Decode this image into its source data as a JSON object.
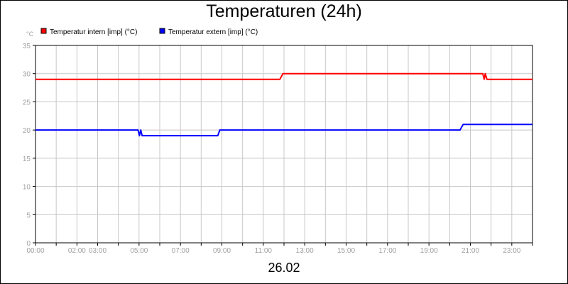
{
  "chart_data": {
    "type": "line",
    "title": "Temperaturen (24h)",
    "ylabel": "°C",
    "xlabel": "26.02",
    "ylim": [
      0,
      35
    ],
    "yticks": [
      0,
      5,
      10,
      15,
      20,
      25,
      30,
      35
    ],
    "xlim": [
      0,
      24
    ],
    "xticks": [
      {
        "hour": 0,
        "label": "00:00"
      },
      {
        "hour": 2,
        "label": "02:00"
      },
      {
        "hour": 3,
        "label": "03:00"
      },
      {
        "hour": 5,
        "label": "05:00"
      },
      {
        "hour": 7,
        "label": "07:00"
      },
      {
        "hour": 9,
        "label": "09:00"
      },
      {
        "hour": 11,
        "label": "11:00"
      },
      {
        "hour": 13,
        "label": "13:00"
      },
      {
        "hour": 15,
        "label": "15:00"
      },
      {
        "hour": 17,
        "label": "17:00"
      },
      {
        "hour": 19,
        "label": "19:00"
      },
      {
        "hour": 21,
        "label": "21:00"
      },
      {
        "hour": 23,
        "label": "23:00"
      }
    ],
    "grid_hours": [
      0,
      1,
      2,
      3,
      4,
      5,
      6,
      7,
      8,
      9,
      10,
      11,
      12,
      13,
      14,
      15,
      16,
      17,
      18,
      19,
      20,
      21,
      22,
      23,
      24
    ],
    "grid": true,
    "legend_position": "top-left",
    "series": [
      {
        "name": "Temperatur intern [imp] (°C)",
        "color": "#ff0000",
        "points": [
          [
            0,
            29
          ],
          [
            11.8,
            29
          ],
          [
            11.95,
            30
          ],
          [
            21.6,
            30
          ],
          [
            21.67,
            29
          ],
          [
            21.72,
            30
          ],
          [
            21.8,
            29
          ],
          [
            24,
            29
          ]
        ]
      },
      {
        "name": "Temperatur extern [imp] (°C)",
        "color": "#0000ff",
        "points": [
          [
            0,
            20
          ],
          [
            4.95,
            20
          ],
          [
            5.02,
            19
          ],
          [
            5.08,
            20
          ],
          [
            5.15,
            19
          ],
          [
            8.8,
            19
          ],
          [
            8.9,
            20
          ],
          [
            20.5,
            20
          ],
          [
            20.65,
            21
          ],
          [
            24,
            21
          ]
        ]
      }
    ]
  }
}
